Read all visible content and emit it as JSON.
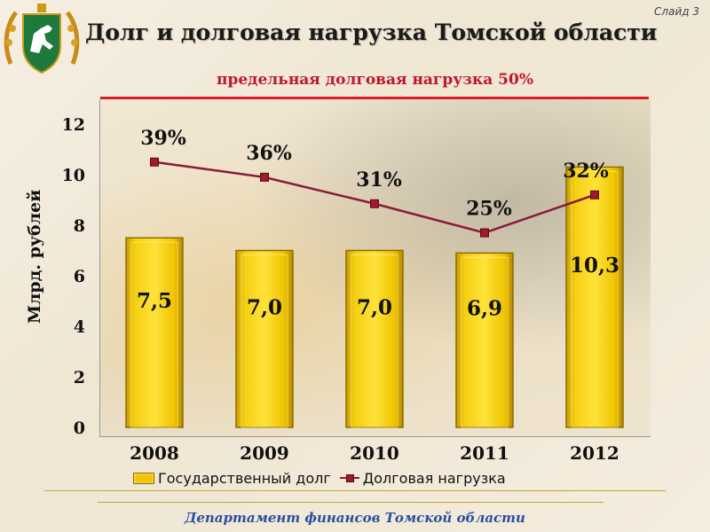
{
  "slide_number": "Слайд 3",
  "title": "Долг и долговая нагрузка Томской области",
  "limit_text": "предельная долговая нагрузка 50%",
  "footer": "Департамент финансов Томской области",
  "colors": {
    "bar": "#f2c200",
    "bar_border": "#8a6e00",
    "line": "#8b1a3a",
    "marker": "#9e1b2b",
    "limit_line": "#e01b28"
  },
  "chart_data": {
    "type": "bar",
    "categories": [
      "2008",
      "2009",
      "2010",
      "2011",
      "2012"
    ],
    "ylabel": "Млрд. рублей",
    "ylim": [
      0,
      12
    ],
    "yticks": [
      0,
      2,
      4,
      6,
      8,
      10,
      12
    ],
    "series": [
      {
        "name": "Государственный долг",
        "type": "bar",
        "values": [
          7.5,
          7.0,
          7.0,
          6.9,
          10.3
        ],
        "labels": [
          "7,5",
          "7,0",
          "7,0",
          "6,9",
          "10,3"
        ]
      },
      {
        "name": "Долговая нагрузка",
        "type": "line",
        "values": [
          39,
          36,
          31,
          25,
          32
        ],
        "labels": [
          "39%",
          "36%",
          "31%",
          "25%",
          "32%"
        ],
        "plotted_on_left_axis": [
          10.5,
          9.9,
          8.85,
          7.7,
          9.2
        ]
      }
    ],
    "legend_position": "bottom",
    "grid": false
  }
}
